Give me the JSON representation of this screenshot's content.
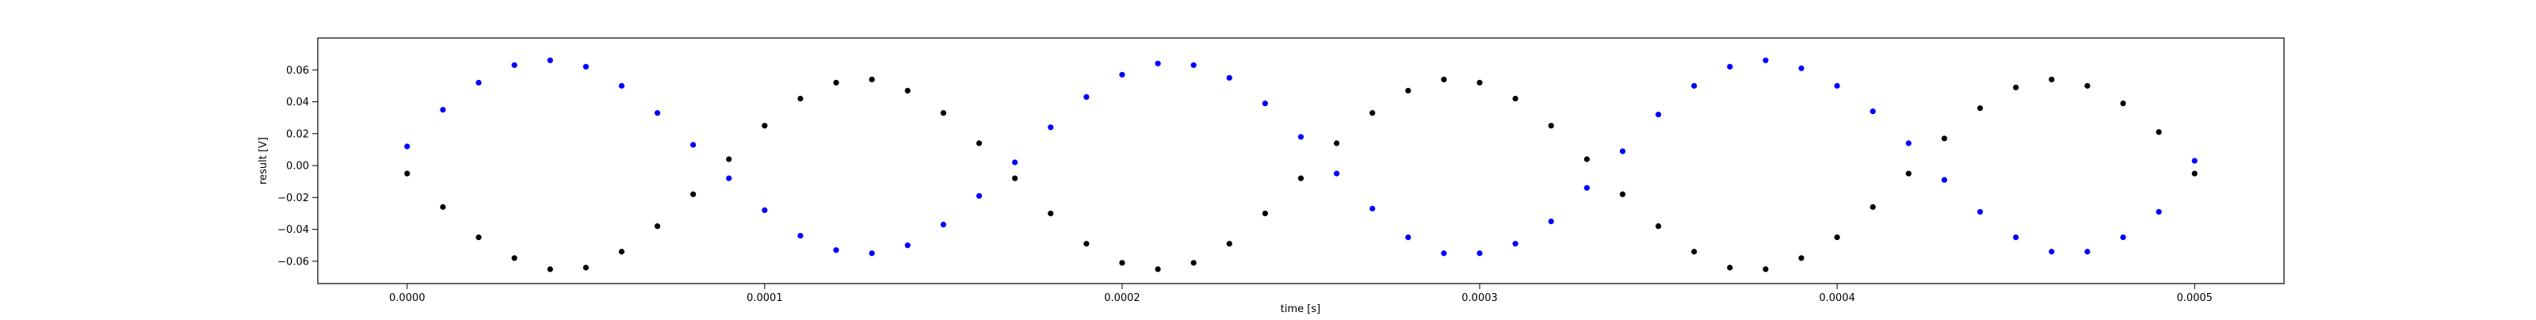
{
  "chart_data": {
    "type": "scatter",
    "xlabel": "time [s]",
    "ylabel": "result [V]",
    "xlim": [
      -2.5e-05,
      0.000525
    ],
    "ylim": [
      -0.074,
      0.08
    ],
    "x_ticks": [
      0.0,
      0.0001,
      0.0002,
      0.0003,
      0.0004,
      0.0005
    ],
    "x_tick_labels": [
      "0.0000",
      "0.0001",
      "0.0002",
      "0.0003",
      "0.0004",
      "0.0005"
    ],
    "y_ticks": [
      -0.06,
      -0.04,
      -0.02,
      0.0,
      0.02,
      0.04,
      0.06
    ],
    "y_tick_labels": [
      "−0.06",
      "−0.04",
      "−0.02",
      "0.00",
      "0.02",
      "0.04",
      "0.06"
    ],
    "grid": false,
    "legend": "none",
    "series": [
      {
        "color": "#0000ff",
        "x": [
          0.0,
          1e-05,
          2e-05,
          3e-05,
          4e-05,
          5e-05,
          6e-05,
          7e-05,
          8e-05,
          9e-05,
          0.0001,
          0.00011,
          0.00012,
          0.00013,
          0.00014,
          0.00015,
          0.00016,
          0.00017,
          0.00018,
          0.00019,
          0.0002,
          0.00021,
          0.00022,
          0.00023,
          0.00024,
          0.00025,
          0.00026,
          0.00027,
          0.00028,
          0.00029,
          0.0003,
          0.00031,
          0.00032,
          0.00033,
          0.00034,
          0.00035,
          0.00036,
          0.00037,
          0.00038,
          0.00039,
          0.0004,
          0.00041,
          0.00042,
          0.00043,
          0.00044,
          0.00045,
          0.00046,
          0.00047,
          0.00048,
          0.00049,
          0.0005
        ],
        "y": [
          0.012,
          0.035,
          0.052,
          0.063,
          0.066,
          0.062,
          0.05,
          0.033,
          0.013,
          -0.008,
          -0.028,
          -0.044,
          -0.053,
          -0.055,
          -0.05,
          -0.037,
          -0.019,
          0.002,
          0.024,
          0.043,
          0.057,
          0.064,
          0.063,
          0.055,
          0.039,
          0.018,
          -0.005,
          -0.027,
          -0.045,
          -0.055,
          -0.055,
          -0.049,
          -0.035,
          -0.014,
          0.009,
          0.032,
          0.05,
          0.062,
          0.066,
          0.061,
          0.05,
          0.034,
          0.014,
          -0.009,
          -0.029,
          -0.045,
          -0.054,
          -0.054,
          -0.045,
          -0.029,
          0.003
        ]
      },
      {
        "color": "#000000",
        "x": [
          0.0,
          1e-05,
          2e-05,
          3e-05,
          4e-05,
          5e-05,
          6e-05,
          7e-05,
          8e-05,
          9e-05,
          0.0001,
          0.00011,
          0.00012,
          0.00013,
          0.00014,
          0.00015,
          0.00016,
          0.00017,
          0.00018,
          0.00019,
          0.0002,
          0.00021,
          0.00022,
          0.00023,
          0.00024,
          0.00025,
          0.00026,
          0.00027,
          0.00028,
          0.00029,
          0.0003,
          0.00031,
          0.00032,
          0.00033,
          0.00034,
          0.00035,
          0.00036,
          0.00037,
          0.00038,
          0.00039,
          0.0004,
          0.00041,
          0.00042,
          0.00043,
          0.00044,
          0.00045,
          0.00046,
          0.00047,
          0.00048,
          0.00049,
          0.0005
        ],
        "y": [
          -0.005,
          -0.026,
          -0.045,
          -0.058,
          -0.065,
          -0.064,
          -0.054,
          -0.038,
          -0.018,
          0.004,
          0.025,
          0.042,
          0.052,
          0.054,
          0.047,
          0.033,
          0.014,
          -0.008,
          -0.03,
          -0.049,
          -0.061,
          -0.065,
          -0.061,
          -0.049,
          -0.03,
          -0.008,
          0.014,
          0.033,
          0.047,
          0.054,
          0.052,
          0.042,
          0.025,
          0.004,
          -0.018,
          -0.038,
          -0.054,
          -0.064,
          -0.065,
          -0.058,
          -0.045,
          -0.026,
          -0.005,
          0.017,
          0.036,
          0.049,
          0.054,
          0.05,
          0.039,
          0.021,
          -0.005
        ]
      }
    ]
  }
}
